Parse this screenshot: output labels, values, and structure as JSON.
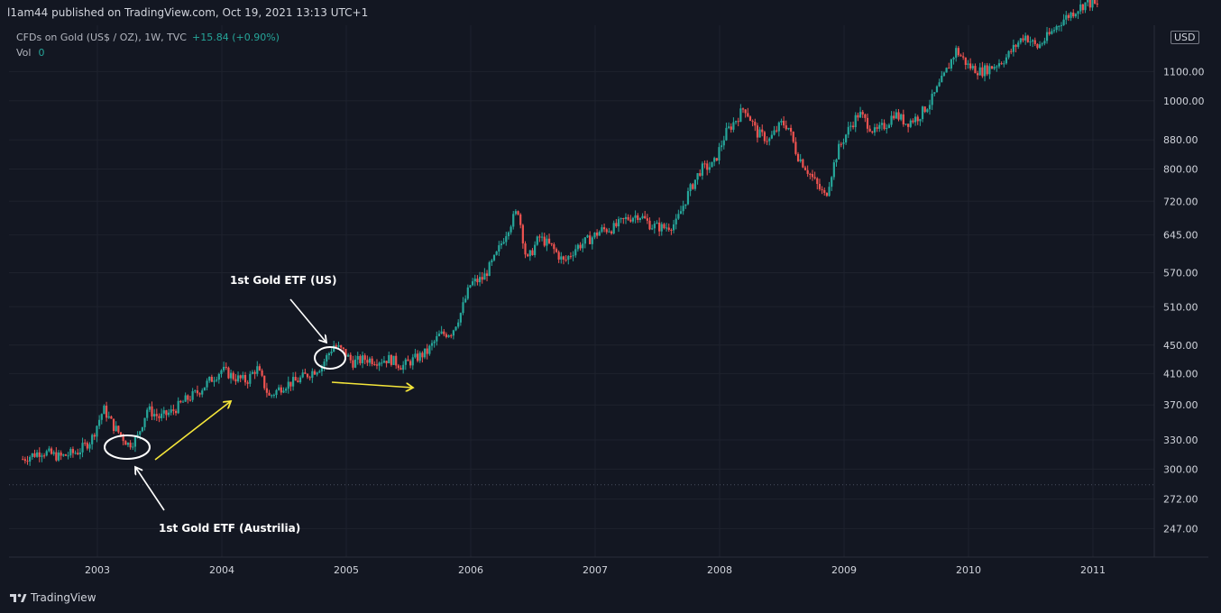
{
  "header": {
    "published": "l1am44 published on TradingView.com, Oct 19, 2021 13:13 UTC+1"
  },
  "legend": {
    "symbol": "CFDs on Gold (US$ / OZ), 1W, TVC",
    "change": "+15.84 (+0.90%)",
    "vol_label": "Vol",
    "vol_value": "0"
  },
  "currency": "USD",
  "footer": {
    "brand": "TradingView"
  },
  "colors": {
    "up": "#26a69a",
    "down": "#ef5350",
    "background": "#131722",
    "grid": "#1e222d",
    "arrow_yellow": "#f5e63a",
    "annotation": "#ffffff"
  },
  "chart_data": {
    "type": "candlestick",
    "y_scale": "log",
    "ylim": [
      225,
      1280
    ],
    "x_ticks": [
      "2003",
      "2004",
      "2005",
      "2006",
      "2007",
      "2008",
      "2009",
      "2010",
      "2011"
    ],
    "y_ticks": [
      "1100.00",
      "1000.00",
      "880.00",
      "800.00",
      "720.00",
      "645.00",
      "570.00",
      "510.00",
      "450.00",
      "410.00",
      "370.00",
      "330.00",
      "300.00",
      "272.00",
      "247.00"
    ],
    "y_tick_values": [
      1100,
      1000,
      880,
      800,
      720,
      645,
      570,
      510,
      450,
      410,
      370,
      330,
      300,
      272,
      247
    ],
    "price_line": 285,
    "path": [
      {
        "x": 2002.4,
        "y": 310
      },
      {
        "x": 2002.55,
        "y": 318
      },
      {
        "x": 2002.7,
        "y": 312
      },
      {
        "x": 2002.85,
        "y": 318
      },
      {
        "x": 2002.95,
        "y": 330
      },
      {
        "x": 2003.05,
        "y": 365
      },
      {
        "x": 2003.13,
        "y": 345
      },
      {
        "x": 2003.25,
        "y": 325
      },
      {
        "x": 2003.32,
        "y": 332
      },
      {
        "x": 2003.4,
        "y": 365
      },
      {
        "x": 2003.5,
        "y": 355
      },
      {
        "x": 2003.6,
        "y": 362
      },
      {
        "x": 2003.7,
        "y": 375
      },
      {
        "x": 2003.8,
        "y": 385
      },
      {
        "x": 2003.9,
        "y": 400
      },
      {
        "x": 2004.0,
        "y": 415
      },
      {
        "x": 2004.1,
        "y": 405
      },
      {
        "x": 2004.2,
        "y": 400
      },
      {
        "x": 2004.28,
        "y": 418
      },
      {
        "x": 2004.38,
        "y": 380
      },
      {
        "x": 2004.5,
        "y": 395
      },
      {
        "x": 2004.6,
        "y": 400
      },
      {
        "x": 2004.7,
        "y": 410
      },
      {
        "x": 2004.8,
        "y": 420
      },
      {
        "x": 2004.9,
        "y": 450
      },
      {
        "x": 2004.98,
        "y": 440
      },
      {
        "x": 2005.05,
        "y": 425
      },
      {
        "x": 2005.15,
        "y": 430
      },
      {
        "x": 2005.25,
        "y": 428
      },
      {
        "x": 2005.35,
        "y": 430
      },
      {
        "x": 2005.45,
        "y": 420
      },
      {
        "x": 2005.55,
        "y": 430
      },
      {
        "x": 2005.65,
        "y": 440
      },
      {
        "x": 2005.75,
        "y": 465
      },
      {
        "x": 2005.85,
        "y": 470
      },
      {
        "x": 2005.92,
        "y": 500
      },
      {
        "x": 2006.0,
        "y": 550
      },
      {
        "x": 2006.1,
        "y": 560
      },
      {
        "x": 2006.2,
        "y": 600
      },
      {
        "x": 2006.3,
        "y": 660
      },
      {
        "x": 2006.38,
        "y": 700
      },
      {
        "x": 2006.45,
        "y": 590
      },
      {
        "x": 2006.55,
        "y": 640
      },
      {
        "x": 2006.65,
        "y": 620
      },
      {
        "x": 2006.75,
        "y": 590
      },
      {
        "x": 2006.85,
        "y": 620
      },
      {
        "x": 2006.95,
        "y": 635
      },
      {
        "x": 2007.05,
        "y": 655
      },
      {
        "x": 2007.15,
        "y": 660
      },
      {
        "x": 2007.25,
        "y": 680
      },
      {
        "x": 2007.35,
        "y": 690
      },
      {
        "x": 2007.45,
        "y": 665
      },
      {
        "x": 2007.55,
        "y": 660
      },
      {
        "x": 2007.65,
        "y": 670
      },
      {
        "x": 2007.75,
        "y": 740
      },
      {
        "x": 2007.85,
        "y": 800
      },
      {
        "x": 2007.95,
        "y": 810
      },
      {
        "x": 2008.05,
        "y": 900
      },
      {
        "x": 2008.15,
        "y": 950
      },
      {
        "x": 2008.2,
        "y": 980
      },
      {
        "x": 2008.3,
        "y": 900
      },
      {
        "x": 2008.4,
        "y": 880
      },
      {
        "x": 2008.5,
        "y": 930
      },
      {
        "x": 2008.55,
        "y": 920
      },
      {
        "x": 2008.62,
        "y": 840
      },
      {
        "x": 2008.7,
        "y": 800
      },
      {
        "x": 2008.78,
        "y": 760
      },
      {
        "x": 2008.85,
        "y": 730
      },
      {
        "x": 2008.95,
        "y": 850
      },
      {
        "x": 2009.05,
        "y": 920
      },
      {
        "x": 2009.12,
        "y": 960
      },
      {
        "x": 2009.25,
        "y": 900
      },
      {
        "x": 2009.35,
        "y": 930
      },
      {
        "x": 2009.4,
        "y": 960
      },
      {
        "x": 2009.5,
        "y": 930
      },
      {
        "x": 2009.6,
        "y": 950
      },
      {
        "x": 2009.7,
        "y": 1000
      },
      {
        "x": 2009.8,
        "y": 1080
      },
      {
        "x": 2009.9,
        "y": 1180
      },
      {
        "x": 2010.0,
        "y": 1120
      },
      {
        "x": 2010.1,
        "y": 1100
      },
      {
        "x": 2010.2,
        "y": 1120
      },
      {
        "x": 2010.3,
        "y": 1150
      },
      {
        "x": 2010.4,
        "y": 1210
      },
      {
        "x": 2010.45,
        "y": 1240
      },
      {
        "x": 2010.55,
        "y": 1190
      },
      {
        "x": 2010.65,
        "y": 1240
      },
      {
        "x": 2010.75,
        "y": 1300
      },
      {
        "x": 2010.85,
        "y": 1340
      },
      {
        "x": 2010.95,
        "y": 1380
      },
      {
        "x": 2011.05,
        "y": 1360
      }
    ],
    "annotations": [
      {
        "text": "1st Gold ETF (US)"
      },
      {
        "text": "1st Gold ETF (Austrilia)"
      }
    ]
  }
}
